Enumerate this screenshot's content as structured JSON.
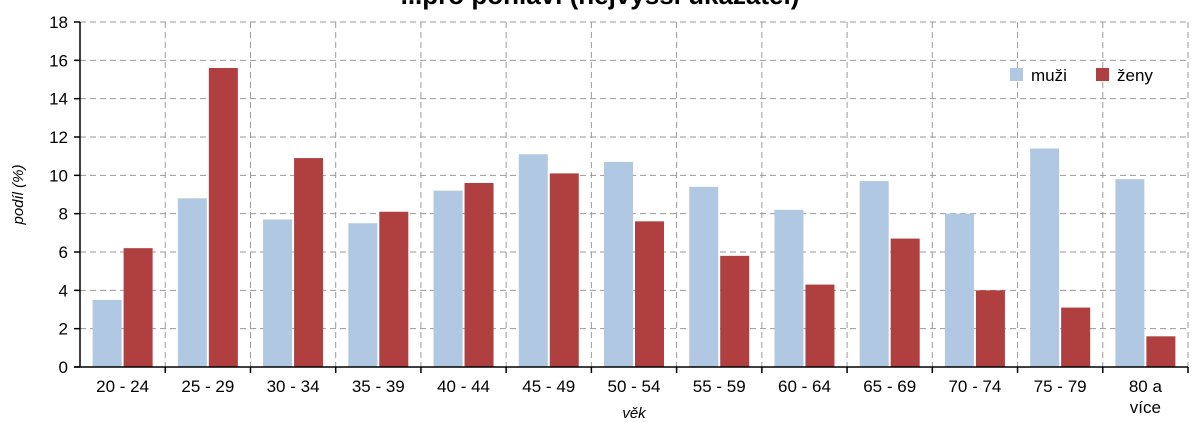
{
  "chart_data": {
    "type": "bar",
    "title": "...pro pohlaví (nejvyšší ukazatel)",
    "xlabel": "věk",
    "ylabel": "podíl (%)",
    "ylim": [
      0,
      18
    ],
    "ytick_step": 2,
    "grid": true,
    "legend_position": "top-right",
    "categories": [
      "20 - 24",
      "25 - 29",
      "30 - 34",
      "35 - 39",
      "40 - 44",
      "45 - 49",
      "50 - 54",
      "55 - 59",
      "60 - 64",
      "65 - 69",
      "70 - 74",
      "75 - 79",
      "80 a více"
    ],
    "series": [
      {
        "name": "muži",
        "color": "#b0c8e2",
        "values": [
          3.5,
          8.8,
          7.7,
          7.5,
          9.2,
          11.1,
          10.7,
          9.4,
          8.2,
          9.7,
          8.0,
          11.4,
          9.8
        ]
      },
      {
        "name": "ženy",
        "color": "#b03f3f",
        "values": [
          6.2,
          15.6,
          10.9,
          8.1,
          9.6,
          10.1,
          7.6,
          5.8,
          4.3,
          6.7,
          4.0,
          3.1,
          1.6
        ]
      }
    ]
  }
}
